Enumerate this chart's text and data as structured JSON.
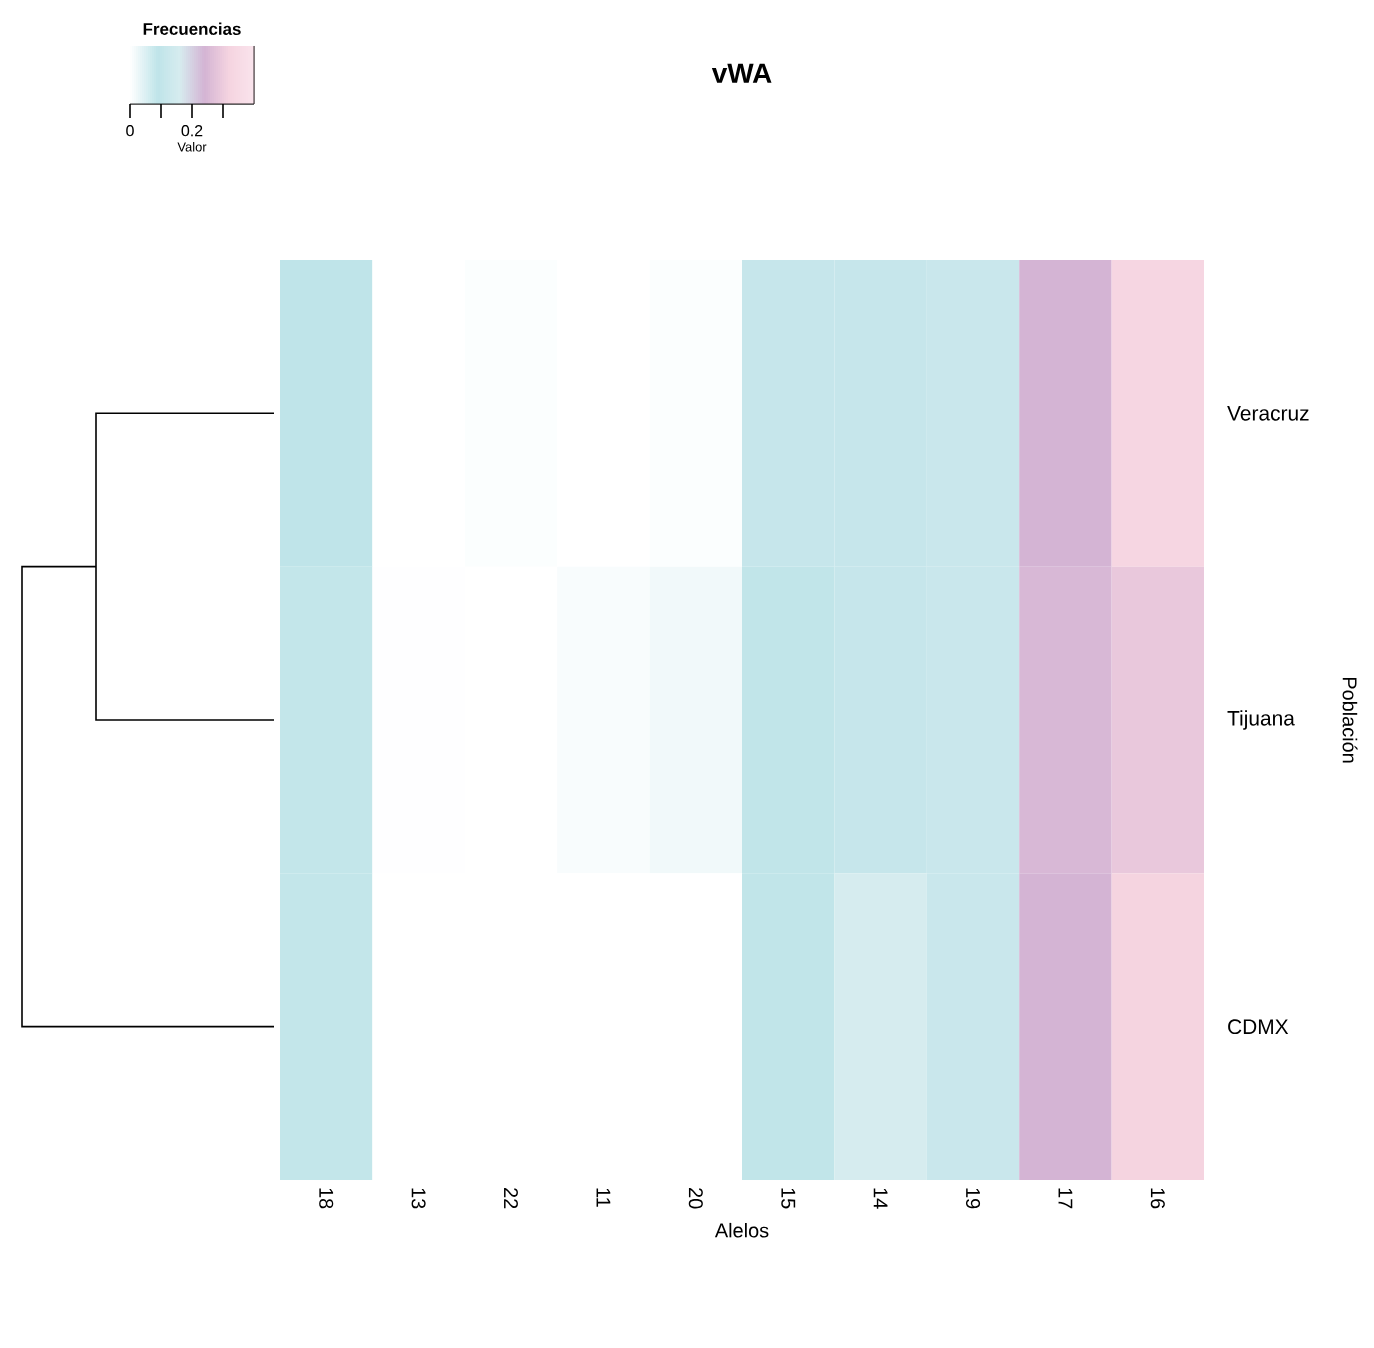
{
  "chart_data": {
    "type": "heatmap",
    "title": "vWA",
    "xlabel": "Alelos",
    "ylabel": "Población",
    "legend_title": "Frecuencias",
    "clabel": "Valor",
    "categories": [
      "18",
      "13",
      "22",
      "11",
      "20",
      "15",
      "14",
      "19",
      "17",
      "16"
    ],
    "y_categories": [
      "Veracruz",
      "Tijuana",
      "CDMX"
    ],
    "cells": [
      [
        0.09,
        0,
        0.005,
        0,
        0.005,
        0.11,
        0.11,
        0.12,
        0.24,
        0.33
      ],
      [
        0.085,
        0.002,
        0,
        0.01,
        0.02,
        0.095,
        0.11,
        0.12,
        0.25,
        0.29
      ],
      [
        0.085,
        0,
        0,
        0,
        0,
        0.095,
        0.16,
        0.12,
        0.24,
        0.32
      ]
    ],
    "clim": [
      0,
      0.4
    ],
    "cticks": [
      0,
      {
        "value": 0.1,
        "label": null
      },
      0.2,
      {
        "value": 0.3,
        "label": null
      }
    ]
  }
}
